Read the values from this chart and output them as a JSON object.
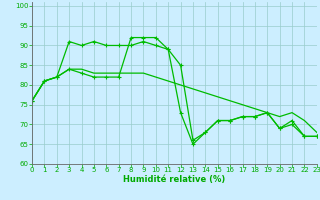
{
  "series": [
    {
      "x": [
        0,
        1,
        2,
        3,
        4,
        5,
        6,
        7,
        8,
        9,
        10,
        11,
        12,
        13,
        14,
        15,
        16,
        17,
        18,
        19,
        20,
        21,
        22,
        23
      ],
      "y": [
        76,
        81,
        82,
        91,
        90,
        91,
        90,
        90,
        90,
        91,
        90,
        89,
        73,
        65,
        68,
        71,
        71,
        72,
        72,
        73,
        69,
        70,
        67,
        67
      ],
      "color": "#00bb00",
      "marker": "+",
      "linewidth": 0.9,
      "markersize": 3.5
    },
    {
      "x": [
        0,
        1,
        2,
        3,
        4,
        5,
        6,
        7,
        8,
        9,
        10,
        11,
        12,
        13,
        14,
        15,
        16,
        17,
        18,
        19,
        20,
        21,
        22,
        23
      ],
      "y": [
        76,
        81,
        82,
        84,
        83,
        82,
        82,
        82,
        92,
        92,
        92,
        89,
        85,
        66,
        68,
        71,
        71,
        72,
        72,
        73,
        69,
        71,
        67,
        67
      ],
      "color": "#00bb00",
      "marker": "+",
      "linewidth": 0.9,
      "markersize": 3.5
    },
    {
      "x": [
        0,
        1,
        2,
        3,
        4,
        5,
        6,
        7,
        8,
        9,
        10,
        11,
        12,
        13,
        14,
        15,
        16,
        17,
        18,
        19,
        20,
        21,
        22,
        23
      ],
      "y": [
        76,
        81,
        82,
        84,
        84,
        83,
        83,
        83,
        83,
        83,
        82,
        81,
        80,
        79,
        78,
        77,
        76,
        75,
        74,
        73,
        72,
        73,
        71,
        68
      ],
      "color": "#00bb00",
      "marker": null,
      "linewidth": 0.9,
      "markersize": 0
    }
  ],
  "xlim": [
    0,
    23
  ],
  "ylim": [
    60,
    101
  ],
  "yticks": [
    60,
    65,
    70,
    75,
    80,
    85,
    90,
    95,
    100
  ],
  "xticks": [
    0,
    1,
    2,
    3,
    4,
    5,
    6,
    7,
    8,
    9,
    10,
    11,
    12,
    13,
    14,
    15,
    16,
    17,
    18,
    19,
    20,
    21,
    22,
    23
  ],
  "xlabel": "Humidité relative (%)",
  "ylabel": "",
  "bg_color": "#cceeff",
  "grid_color": "#99cccc",
  "line_color": "#00bb00",
  "tick_color": "#00aa00",
  "label_color": "#00aa00",
  "tick_fontsize": 5.0,
  "xlabel_fontsize": 6.0
}
